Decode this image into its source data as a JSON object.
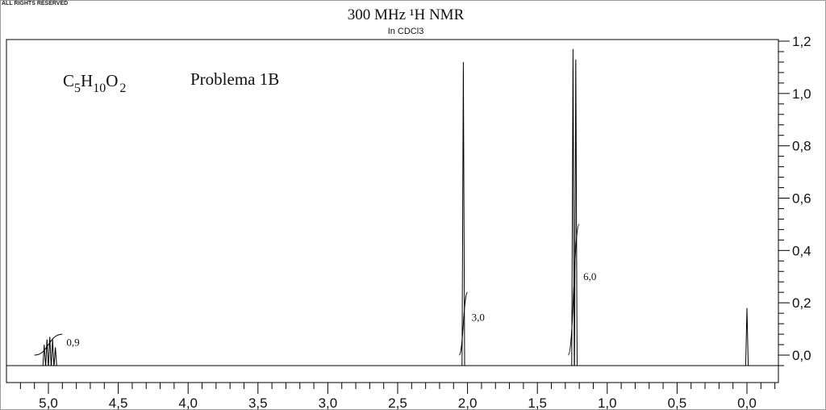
{
  "copyright": "ALL RIGHTS RESERVED",
  "chart_data": {
    "type": "line",
    "title": "300 MHz ¹H NMR",
    "subtitle": "In CDCl3",
    "formula": {
      "base": [
        "C",
        "H",
        "O"
      ],
      "subs": [
        "5",
        "10",
        "2"
      ]
    },
    "problem_label": "Problema 1B",
    "xlabel": "",
    "ylabel": "",
    "xlim": [
      5.2,
      -0.2
    ],
    "ylim": [
      -0.04,
      1.2
    ],
    "x_ticks": [
      5.0,
      4.5,
      4.0,
      3.5,
      3.0,
      2.5,
      2.0,
      1.5,
      1.0,
      0.5,
      0.0
    ],
    "x_tick_labels": [
      "5,0",
      "4,5",
      "4,0",
      "3,5",
      "3,0",
      "2,5",
      "2,0",
      "1,5",
      "1,0",
      "0,5",
      "0,0"
    ],
    "y_ticks": [
      0.0,
      0.2,
      0.4,
      0.6,
      0.8,
      1.0,
      1.2
    ],
    "y_tick_labels": [
      "0,0",
      "0,2",
      "0,4",
      "0,6",
      "0,8",
      "1,0",
      "1,2"
    ],
    "y_axis_side": "right",
    "grid": false,
    "peaks": [
      {
        "shift": 5.03,
        "height": 0.04
      },
      {
        "shift": 5.01,
        "height": 0.06
      },
      {
        "shift": 4.99,
        "height": 0.07
      },
      {
        "shift": 4.97,
        "height": 0.06
      },
      {
        "shift": 4.95,
        "height": 0.03
      },
      {
        "shift": 2.03,
        "height": 1.12
      },
      {
        "shift": 1.245,
        "height": 1.17
      },
      {
        "shift": 1.225,
        "height": 1.13
      },
      {
        "shift": 0.0,
        "height": 0.18
      }
    ],
    "integrals": [
      {
        "label": "0,9",
        "from": 5.1,
        "to": 4.9,
        "start": 0.0,
        "end": 0.08
      },
      {
        "label": "3,0",
        "from": 2.06,
        "to": 2.0,
        "start": 0.0,
        "end": 0.24
      },
      {
        "label": "6,0",
        "from": 1.28,
        "to": 1.2,
        "start": 0.0,
        "end": 0.5
      }
    ]
  },
  "colors": {
    "line": "#000000",
    "frame": "#9a9a9a"
  }
}
